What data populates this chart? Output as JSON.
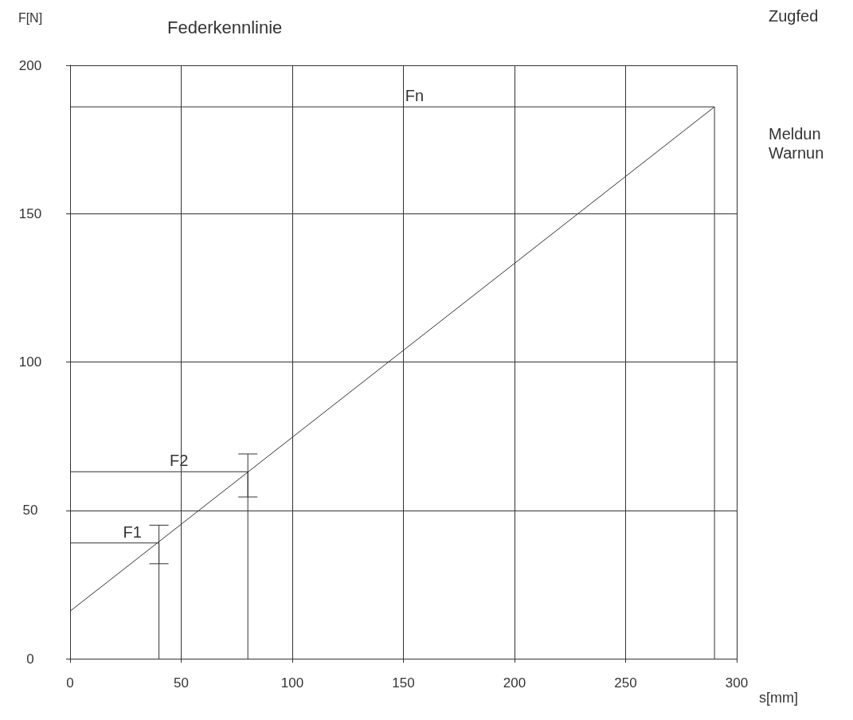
{
  "chart_data": {
    "type": "line",
    "title": "Federkennlinie",
    "xlabel": "s[mm]",
    "ylabel": "F[N]",
    "x": [
      0,
      290
    ],
    "series": [
      {
        "color": "#333333",
        "values": [
          16,
          186
        ],
        "marker": "none"
      },
      {
        "color": "#333333",
        "x": [
          0,
          40,
          40
        ],
        "values": [
          39,
          39,
          0
        ],
        "errors": [
          null,
          [
            32,
            45
          ],
          null
        ],
        "marker": "none"
      },
      {
        "color": "#333333",
        "x": [
          0,
          80,
          80
        ],
        "values": [
          63,
          63,
          0
        ],
        "errors": [
          null,
          [
            54.5,
            69
          ],
          null
        ],
        "marker": "none"
      },
      {
        "color": "#333333",
        "x": [
          0,
          290,
          290
        ],
        "values": [
          186,
          186,
          0
        ],
        "marker": "none"
      }
    ],
    "annotations": [
      {
        "text": "F1",
        "x": 28,
        "y": 39
      },
      {
        "text": "F2",
        "x": 49,
        "y": 63
      },
      {
        "text": "Fn",
        "x": 155,
        "y": 186
      },
      "Zugfed",
      "Meldun",
      "Warnun"
    ],
    "xlim": [
      0,
      300
    ],
    "ylim": [
      0,
      200
    ],
    "xticks": [
      0,
      50,
      100,
      150,
      200,
      250,
      300
    ],
    "yticks": [
      0,
      50,
      100,
      150,
      200
    ],
    "grid": true
  }
}
